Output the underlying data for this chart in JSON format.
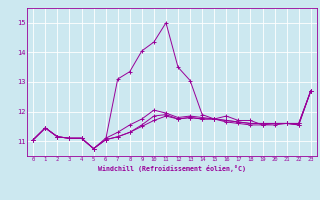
{
  "xlabel": "Windchill (Refroidissement éolien,°C)",
  "bg_color": "#cce8f0",
  "line_color": "#990099",
  "grid_color": "#ffffff",
  "xlim": [
    -0.5,
    23.5
  ],
  "ylim": [
    10.5,
    15.5
  ],
  "yticks": [
    11,
    12,
    13,
    14,
    15
  ],
  "xticks": [
    0,
    1,
    2,
    3,
    4,
    5,
    6,
    7,
    8,
    9,
    10,
    11,
    12,
    13,
    14,
    15,
    16,
    17,
    18,
    19,
    20,
    21,
    22,
    23
  ],
  "lines": [
    [
      11.05,
      11.45,
      11.15,
      11.1,
      11.1,
      10.75,
      11.05,
      11.15,
      11.3,
      11.5,
      11.7,
      11.85,
      11.75,
      11.8,
      11.75,
      11.75,
      11.65,
      11.6,
      11.55,
      11.55,
      11.55,
      11.6,
      11.55,
      12.7
    ],
    [
      11.05,
      11.45,
      11.15,
      11.1,
      11.1,
      10.75,
      11.05,
      13.1,
      13.35,
      14.05,
      14.35,
      15.0,
      13.5,
      13.05,
      11.9,
      11.75,
      11.85,
      11.7,
      11.7,
      11.55,
      11.6,
      11.6,
      11.55,
      12.7
    ],
    [
      11.05,
      11.45,
      11.15,
      11.1,
      11.1,
      10.75,
      11.05,
      11.15,
      11.3,
      11.55,
      11.85,
      11.9,
      11.75,
      11.8,
      11.75,
      11.75,
      11.7,
      11.65,
      11.6,
      11.6,
      11.6,
      11.6,
      11.6,
      12.7
    ],
    [
      11.05,
      11.45,
      11.15,
      11.1,
      11.1,
      10.75,
      11.1,
      11.3,
      11.55,
      11.75,
      12.05,
      11.95,
      11.8,
      11.85,
      11.8,
      11.75,
      11.7,
      11.65,
      11.6,
      11.6,
      11.6,
      11.6,
      11.6,
      12.7
    ]
  ]
}
